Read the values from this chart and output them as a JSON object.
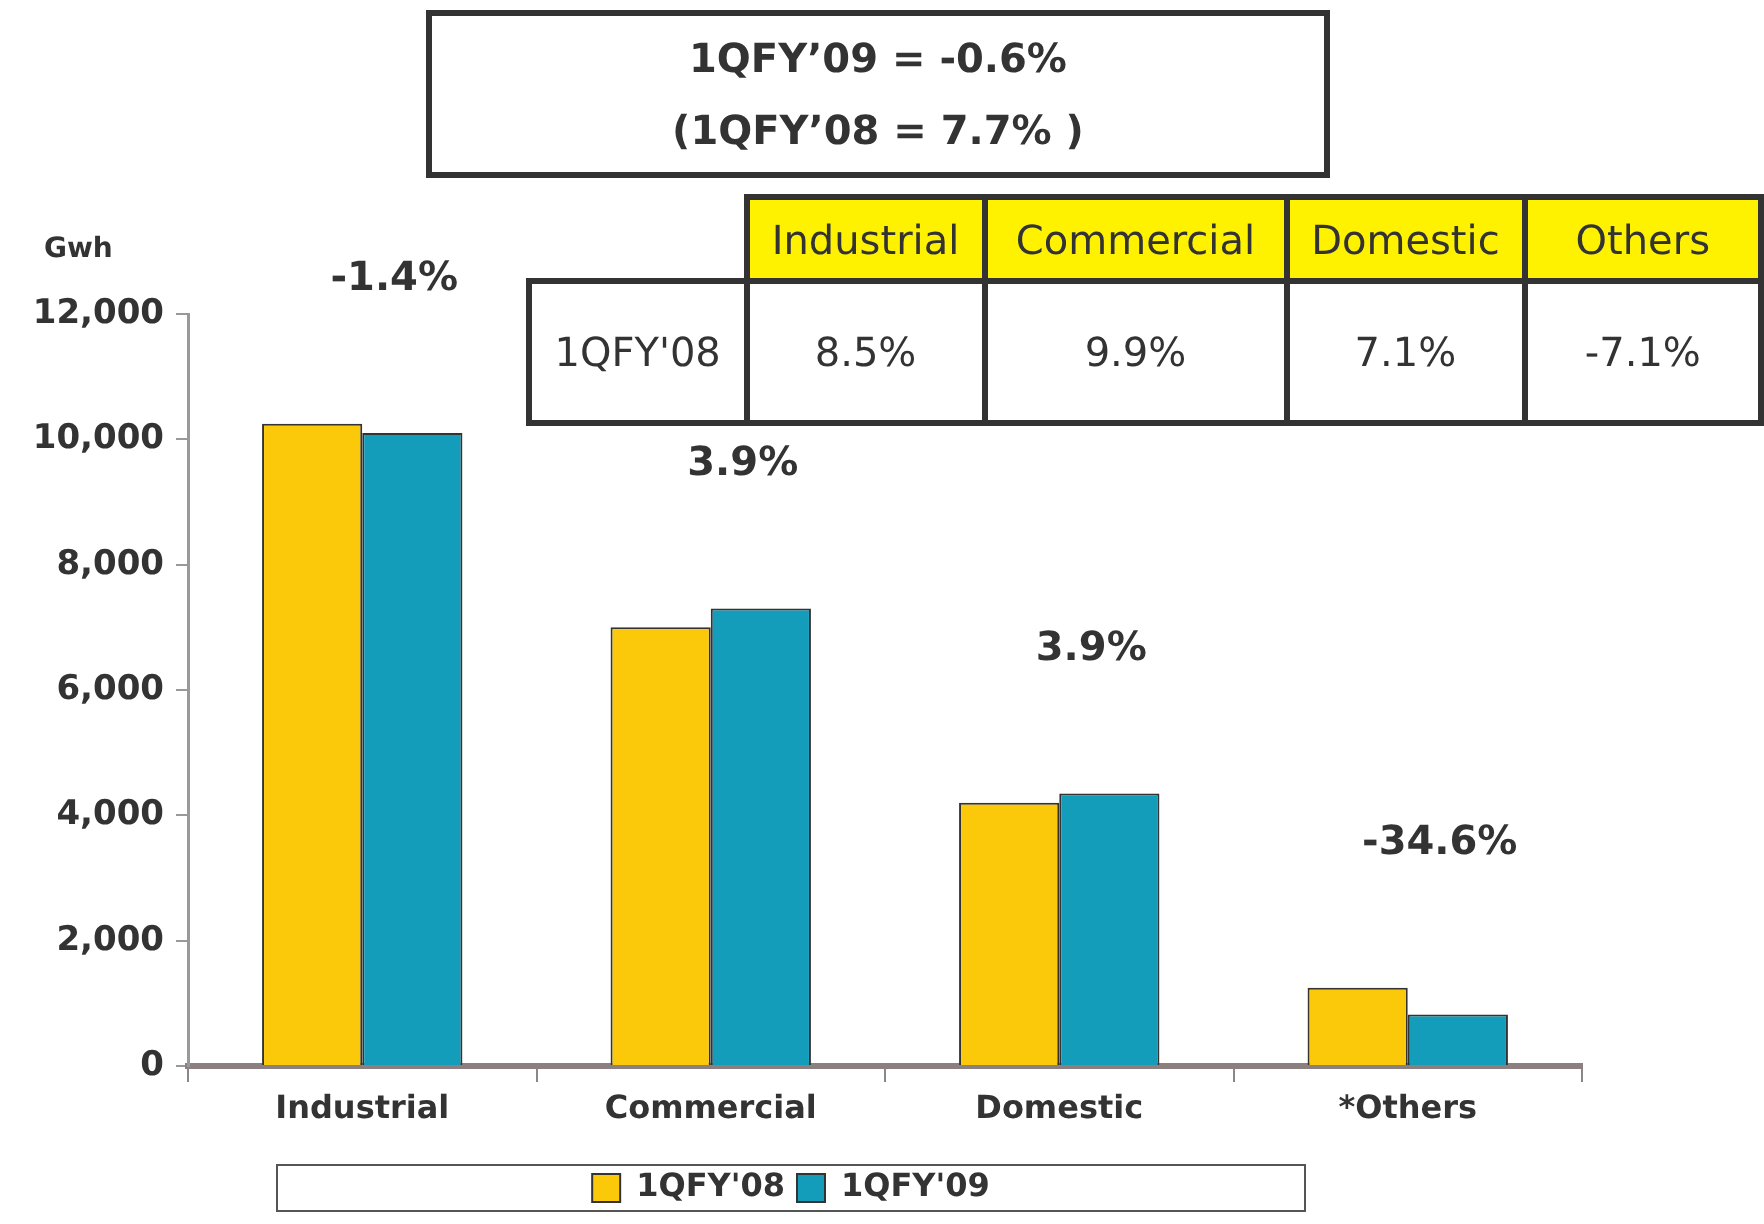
{
  "chart_data": [
    {
      "type": "bar",
      "title": "1QFY’09 = -0.6%",
      "subtitle": "(1QFY’08 = 7.7% )",
      "ylabel": "Gwh",
      "categories": [
        "Industrial",
        "Commercial",
        "Domestic",
        "*Others"
      ],
      "series": [
        {
          "name": "1QFY'08",
          "color": "#fcc90a",
          "values": [
            10250,
            7000,
            4200,
            1250
          ]
        },
        {
          "name": "1QFY'09",
          "color": "#139dbb",
          "values": [
            10100,
            7300,
            4350,
            820
          ]
        }
      ],
      "ylim": [
        0,
        12000
      ],
      "yticks": [
        0,
        {
          "value": 2000,
          "label": "2,000"
        },
        {
          "value": 4000,
          "label": "4,000"
        },
        {
          "value": 6000,
          "label": "6,000"
        },
        {
          "value": 8000,
          "label": "8,000"
        },
        {
          "value": 10000,
          "label": "10,000"
        },
        {
          "value": 12000,
          "label": "12,000"
        }
      ],
      "legend": "bottom",
      "annotations": [
        "-1.4%",
        "3.9%",
        "3.9%",
        "-34.6%"
      ]
    },
    {
      "type": "other",
      "categories": [
        "Industrial",
        "Commercial",
        "Domestic",
        "Others"
      ],
      "y_categories": [
        "1QFY'08"
      ],
      "cell_labels": [
        [
          "8.5%",
          "9.9%",
          "7.1%",
          "-7.1%"
        ]
      ]
    }
  ]
}
